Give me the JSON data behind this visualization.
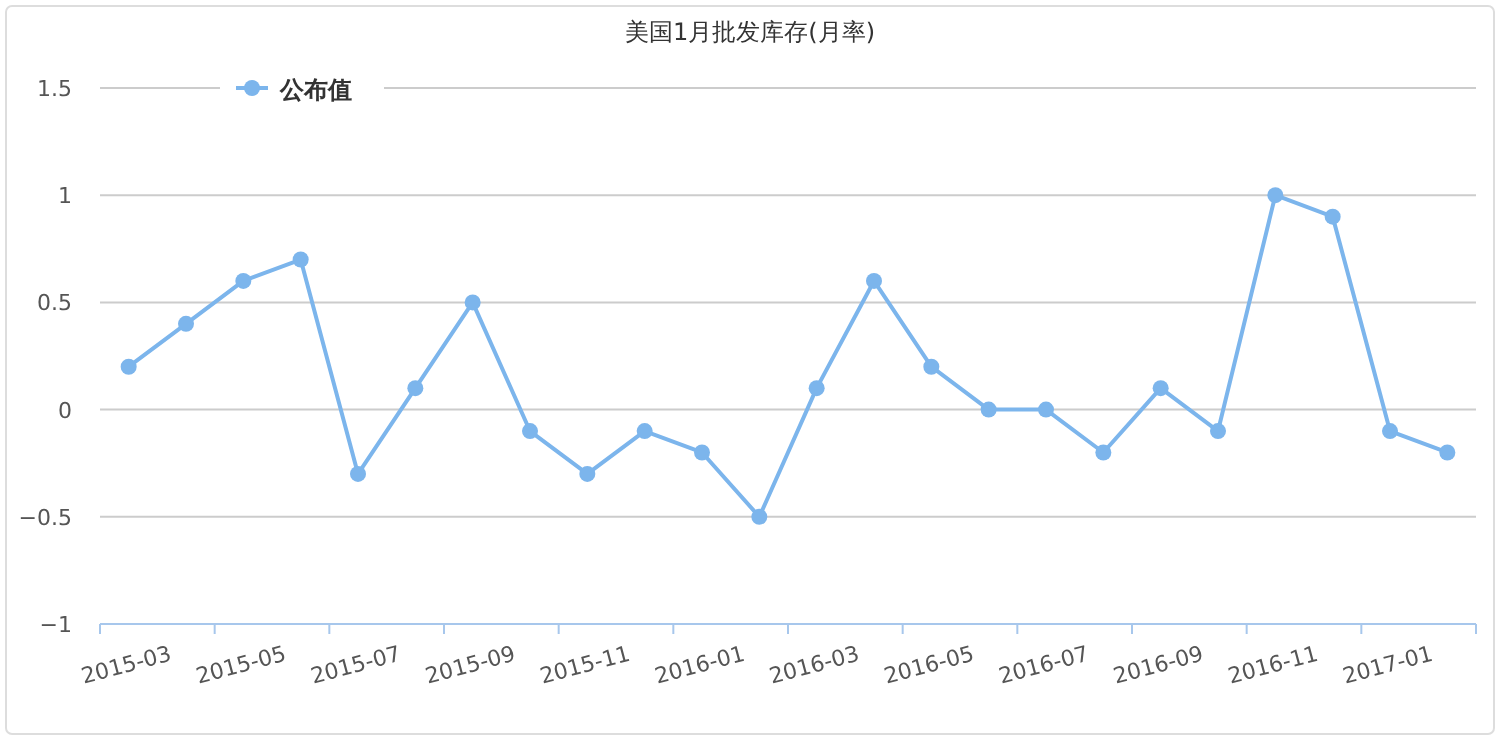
{
  "chart_data": {
    "type": "line",
    "title": "美国1月批发库存(月率)",
    "categories": [
      "2015-03",
      null,
      "2015-05",
      null,
      "2015-07",
      null,
      "2015-09",
      null,
      "2015-11",
      null,
      "2016-01",
      null,
      "2016-03",
      null,
      "2016-05",
      null,
      "2016-07",
      null,
      "2016-09",
      null,
      "2016-11",
      null,
      "2017-01",
      null
    ],
    "series": [
      {
        "name": "公布值",
        "color": "#7cb5ec",
        "values": [
          0.2,
          0.4,
          0.6,
          0.7,
          -0.3,
          0.1,
          0.5,
          -0.1,
          -0.3,
          -0.1,
          -0.2,
          -0.5,
          0.1,
          0.6,
          0.2,
          0,
          0,
          -0.2,
          0.1,
          -0.1,
          1.0,
          0.9,
          -0.1,
          -0.2
        ]
      }
    ],
    "ylim": [
      -1,
      1.5
    ],
    "yticks": [
      -1,
      -0.5,
      0,
      0.5,
      1,
      1.5
    ],
    "grid": "y",
    "legend": "top left",
    "marker": "circle",
    "line_style": "solid"
  }
}
